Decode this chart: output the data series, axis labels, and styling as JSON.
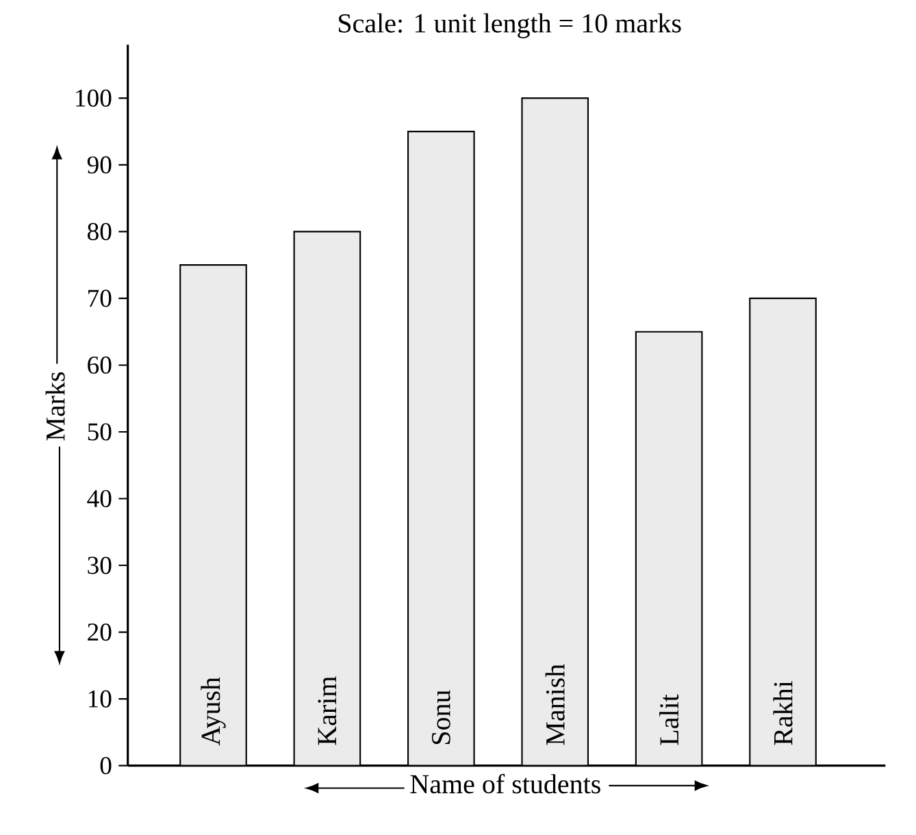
{
  "chart_data": {
    "type": "bar",
    "annotations": [
      "Scale: 1 unit length = 10 marks"
    ],
    "xlabel": "Name of students",
    "ylabel": "Marks",
    "categories": [
      "Ayush",
      "Karim",
      "Sonu",
      "Manish",
      "Lalit",
      "Rakhi"
    ],
    "values": [
      75,
      80,
      95,
      100,
      65,
      70
    ],
    "color": "#ebebeb",
    "ylim": [
      0,
      108
    ],
    "yticks": [
      0,
      10,
      20,
      30,
      40,
      50,
      60,
      70,
      80,
      90,
      100
    ],
    "grid": false
  }
}
